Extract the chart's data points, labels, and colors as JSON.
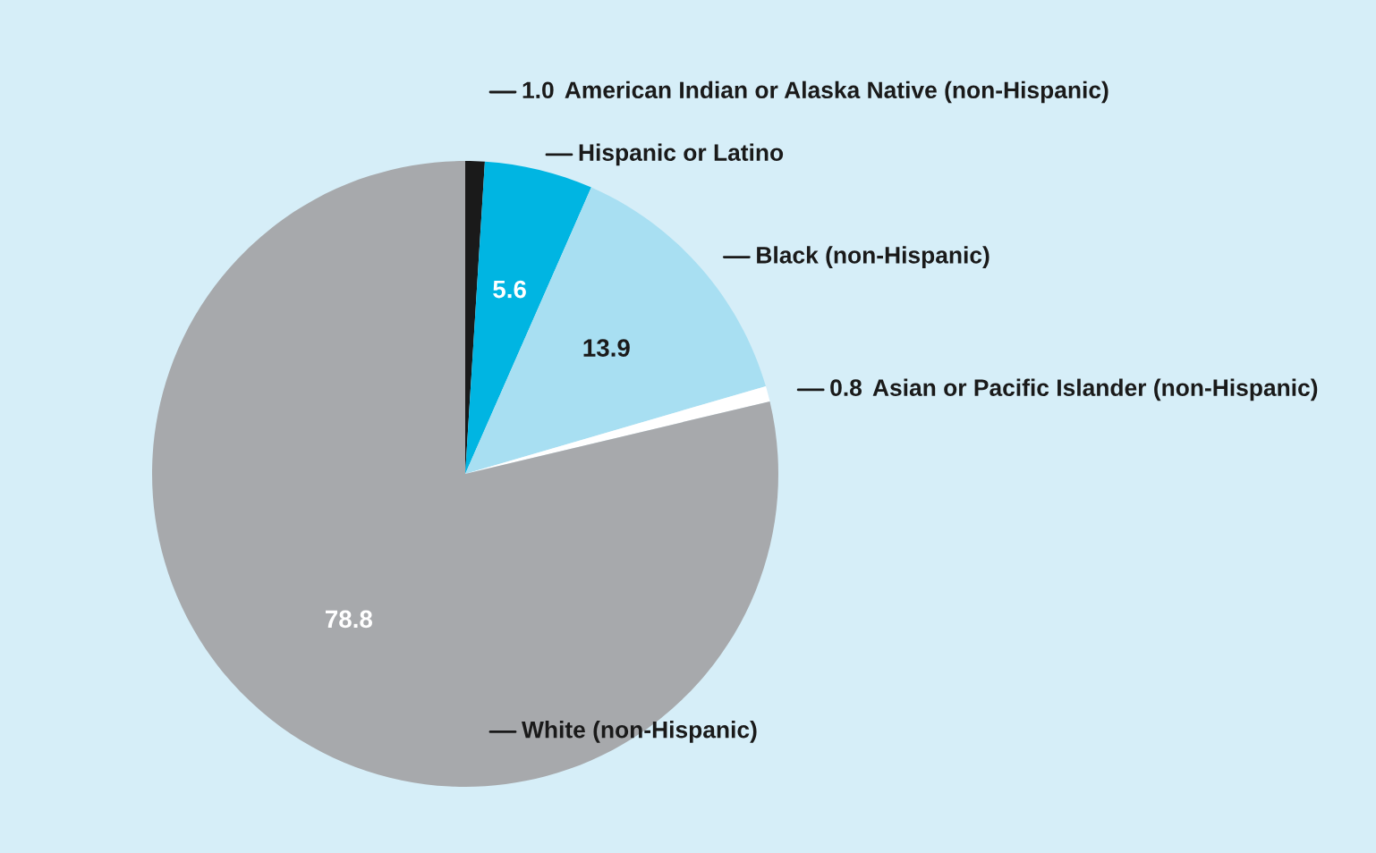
{
  "chart_data": {
    "type": "pie",
    "categories": [
      "American Indian or Alaska Native (non-Hispanic)",
      "Hispanic or Latino",
      "Black (non-Hispanic)",
      "Asian or Pacific Islander (non-Hispanic)",
      "White (non-Hispanic)"
    ],
    "values": [
      1.0,
      5.6,
      13.9,
      0.8,
      78.8
    ],
    "colors": [
      "#1a1a1a",
      "#00b5e2",
      "#a8dff2",
      "#ffffff",
      "#a7a9ac"
    ],
    "value_labels": [
      "1.0",
      "5.6",
      "13.9",
      "0.8",
      "78.8"
    ]
  }
}
